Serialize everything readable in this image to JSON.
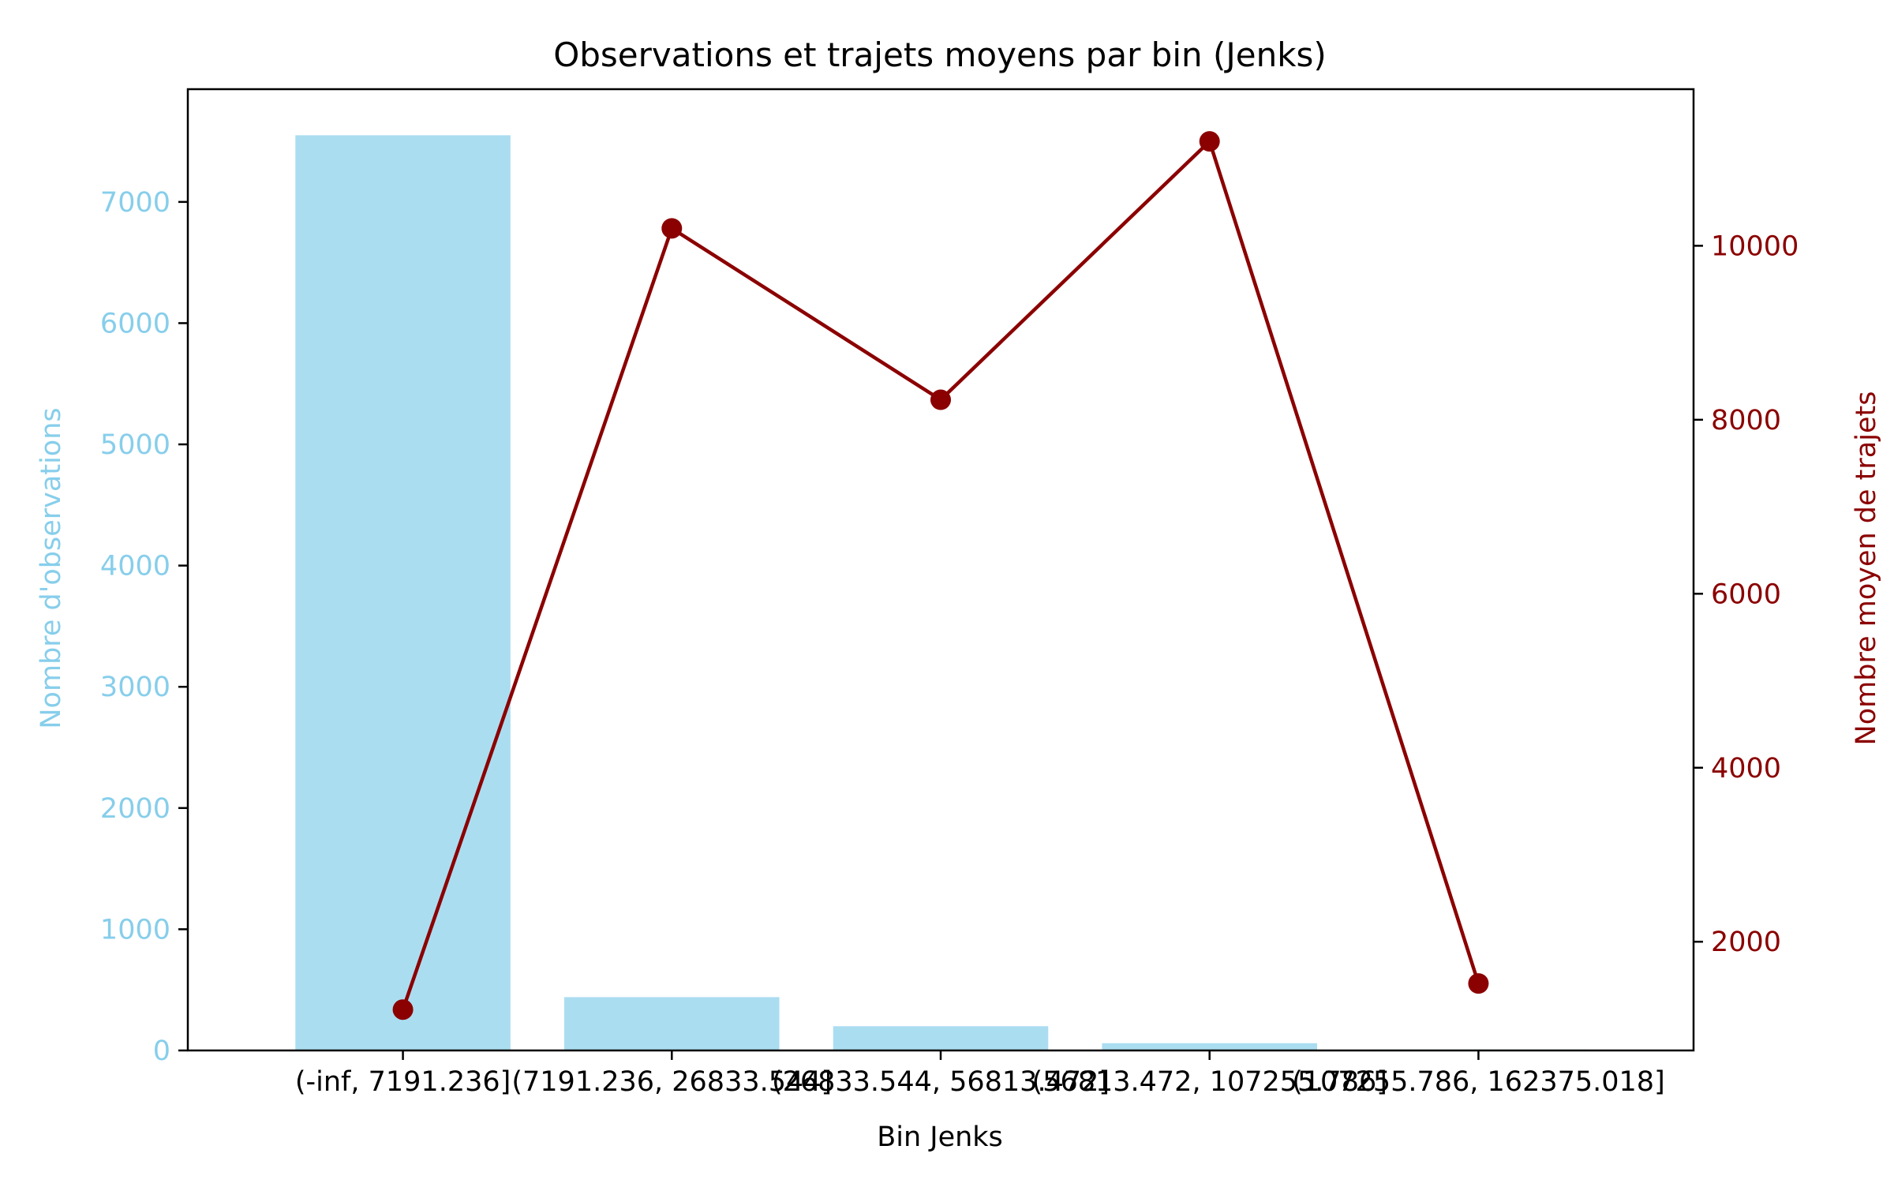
{
  "chart_data": {
    "type": "bar",
    "title": "Observations et trajets moyens par bin (Jenks)",
    "xlabel": "Bin Jenks",
    "ylabel": "Nombre d'observations",
    "y2label": "Nombre moyen de trajets",
    "categories": [
      "(-inf, 7191.236]",
      "(7191.236, 26833.544]",
      "(26833.544, 56813.472]",
      "(56813.472, 107255.786]",
      "(107255.786, 162375.018]"
    ],
    "series": [
      {
        "type": "bar",
        "axis": "left",
        "values": [
          7550,
          440,
          200,
          60,
          8
        ]
      },
      {
        "type": "line",
        "axis": "right",
        "marker": "circle",
        "values": [
          1220,
          10200,
          8230,
          11200,
          1520
        ]
      }
    ],
    "ylim": [
      0,
      7930
    ],
    "y2lim": [
      750,
      11800
    ],
    "yticks": [
      0,
      1000,
      2000,
      3000,
      4000,
      5000,
      6000,
      7000
    ],
    "y2ticks": [
      2000,
      4000,
      6000,
      8000,
      10000
    ],
    "colors": {
      "bar": "#87CEEB",
      "line": "#8B0000",
      "left_axis": "#87CEEB",
      "right_axis": "#8B0000",
      "frame": "#000000"
    },
    "bar_alpha": 0.7,
    "grid": false,
    "legend": "none"
  }
}
